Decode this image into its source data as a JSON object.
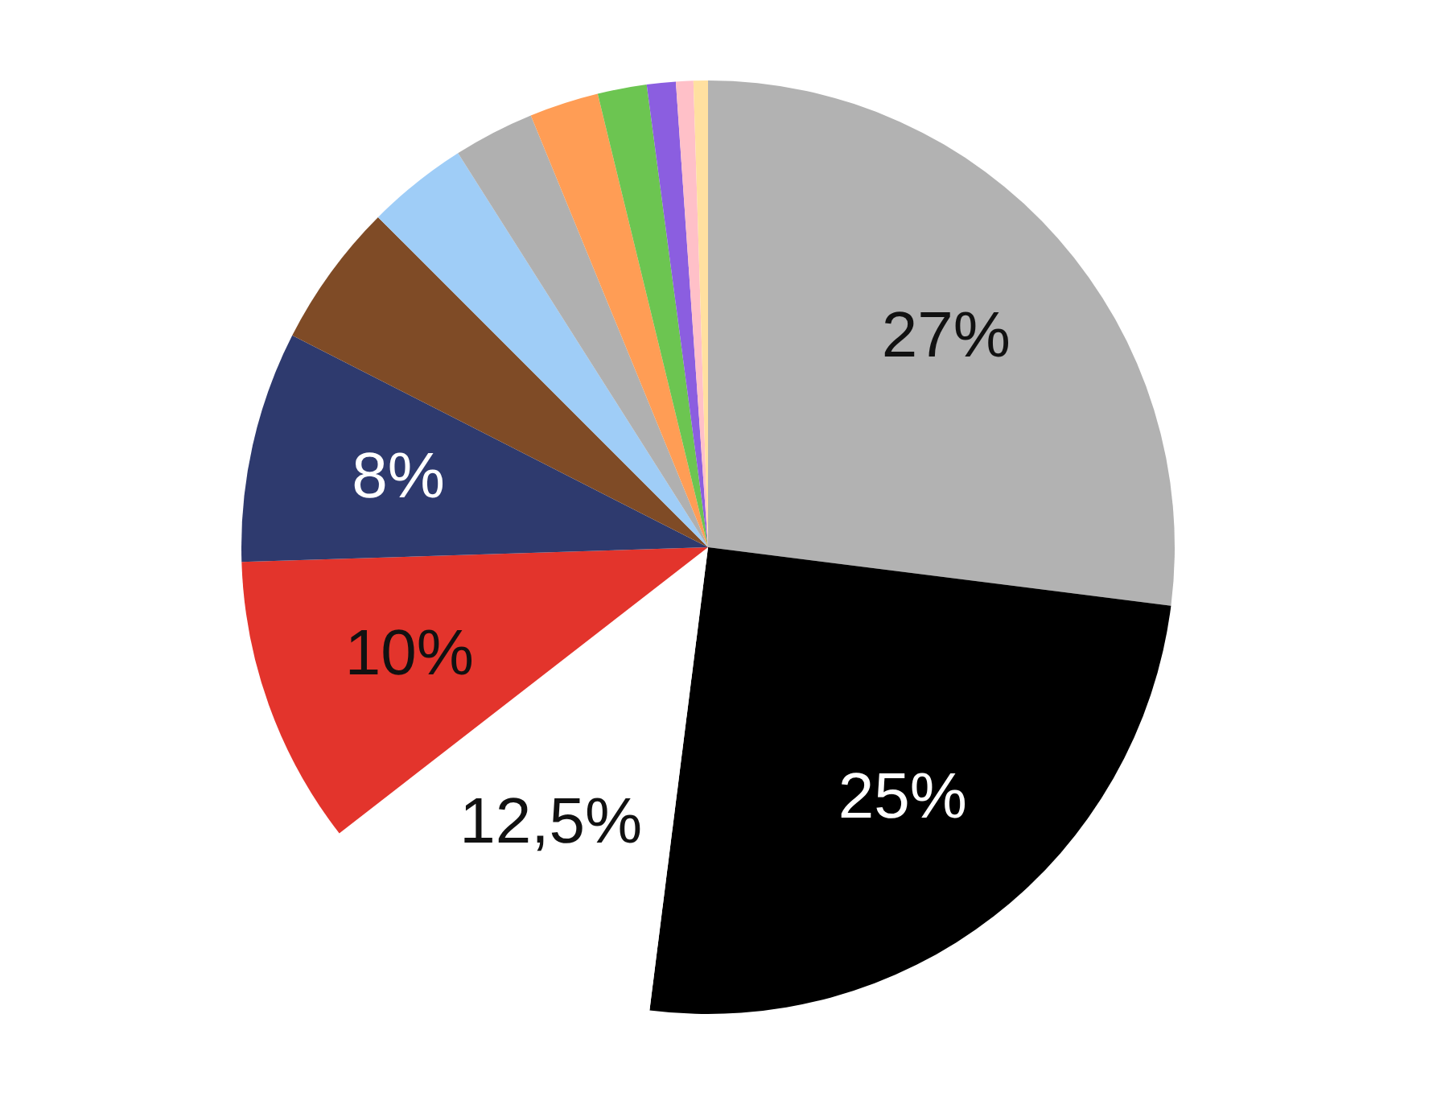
{
  "chart_data": {
    "type": "pie",
    "categories": [
      null,
      null,
      null,
      null,
      null,
      null,
      null,
      null,
      null,
      null,
      null,
      null,
      null
    ],
    "values": [
      27,
      25,
      12.5,
      10,
      8,
      5,
      3.5,
      2.8,
      2.4,
      1.7,
      1,
      0.6,
      0.5
    ],
    "colors": [
      "#b2b2b2",
      "#000000",
      "#ffffff",
      "#e3342c",
      "#2e3a6e",
      "#7f4b26",
      "#9fcdf7",
      "#b0b0b0",
      "#ff9d55",
      "#6cc551",
      "#8b5ee0",
      "#ffc0c8",
      "#ffe0a0"
    ],
    "value_labels": [
      "27%",
      "25%",
      "12,5%",
      "10%",
      "8%",
      null,
      null,
      null,
      null,
      null,
      null,
      null,
      null
    ],
    "legend": false
  }
}
